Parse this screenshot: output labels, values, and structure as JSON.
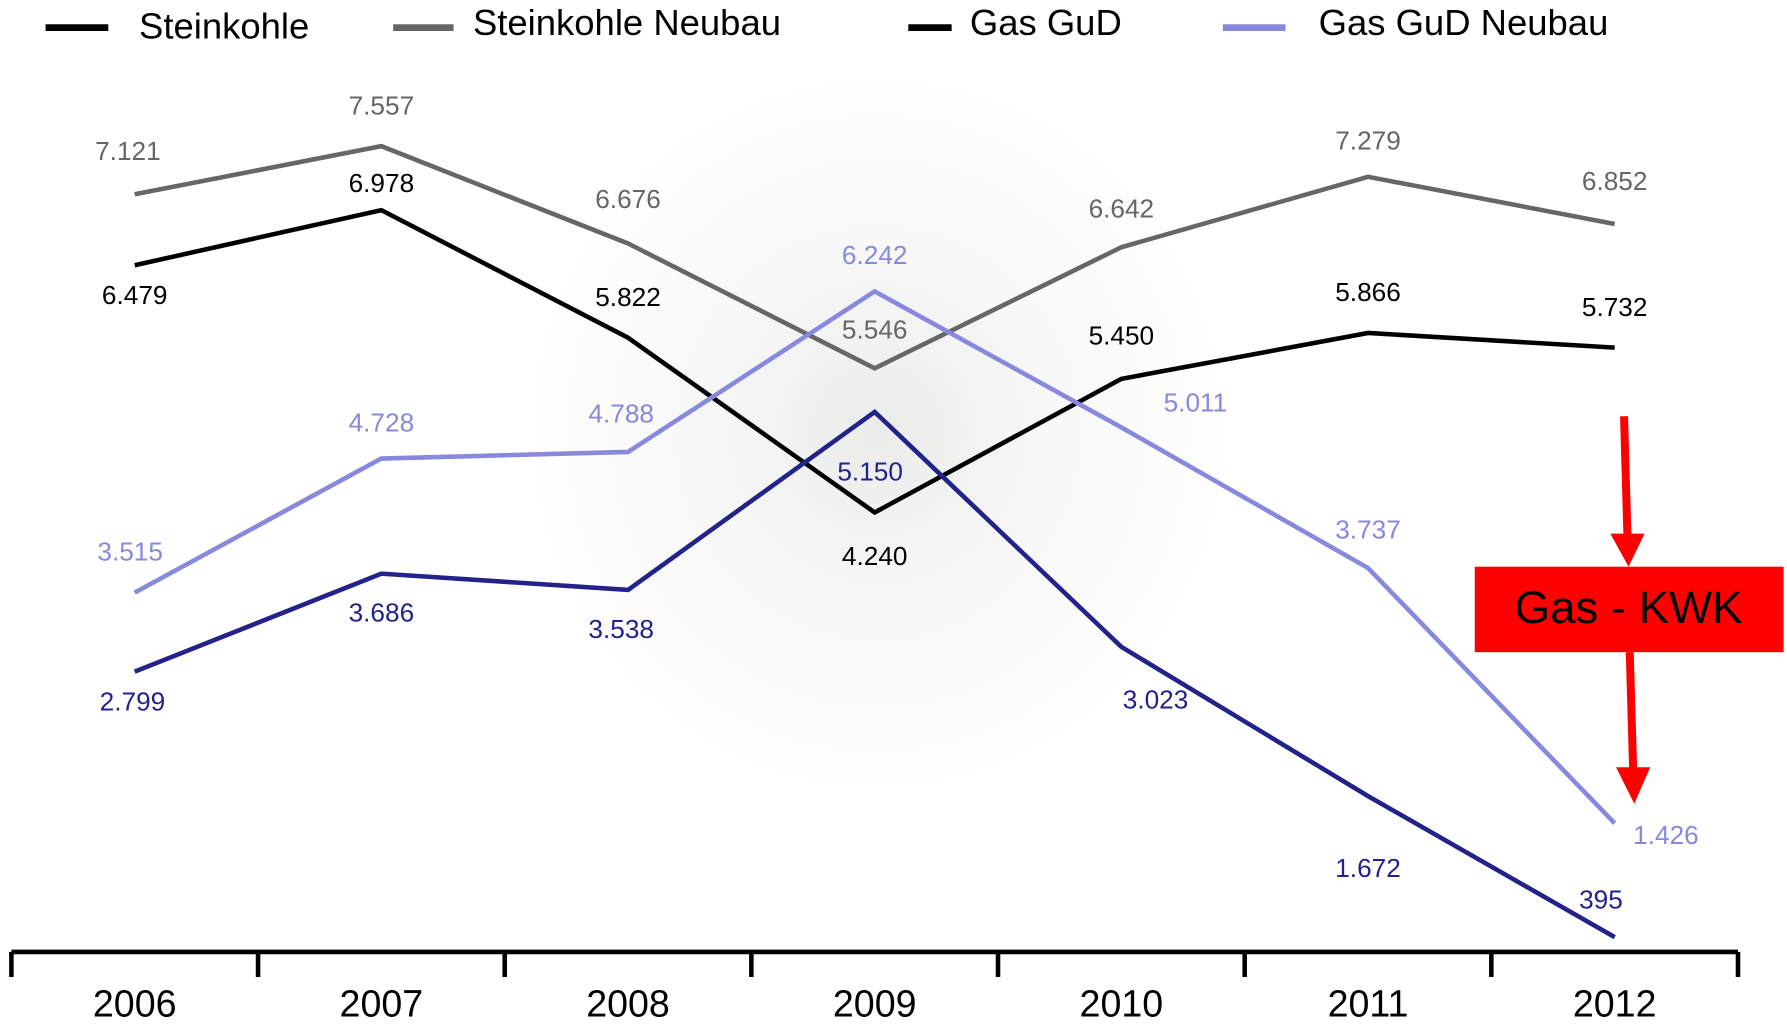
{
  "chart_data": {
    "type": "line",
    "categories": [
      "2006",
      "2007",
      "2008",
      "2009",
      "2010",
      "2011",
      "2012"
    ],
    "series": [
      {
        "name": "Steinkohle",
        "color": "#000000",
        "values": [
          6479,
          6978,
          5822,
          4240,
          5450,
          5866,
          5732
        ],
        "value_labels": [
          "6.479",
          "6.978",
          "5.822",
          "4.240",
          "5.450",
          "5.866",
          "5.732"
        ]
      },
      {
        "name": "Steinkohle Neubau",
        "color": "#666666",
        "values": [
          7121,
          7557,
          6676,
          5546,
          6642,
          7279,
          6852
        ],
        "value_labels": [
          "7.121",
          "7.557",
          "6.676",
          "5.546",
          "6.642",
          "7.279",
          "6.852"
        ]
      },
      {
        "name": "Gas GuD",
        "color": "#22228a",
        "values": [
          2799,
          3686,
          3538,
          5150,
          3023,
          1672,
          395
        ],
        "value_labels": [
          "2.799",
          "3.686",
          "3.538",
          "5.150",
          "3.023",
          "1.672",
          "395"
        ]
      },
      {
        "name": "Gas GuD Neubau",
        "color": "#8888dd",
        "values": [
          3515,
          4728,
          4788,
          6242,
          5011,
          3737,
          1426
        ],
        "value_labels": [
          "3.515",
          "4.728",
          "4.788",
          "6.242",
          "5.011",
          "3.737",
          "1.426"
        ]
      }
    ],
    "annotation": "Gas - KWK"
  }
}
